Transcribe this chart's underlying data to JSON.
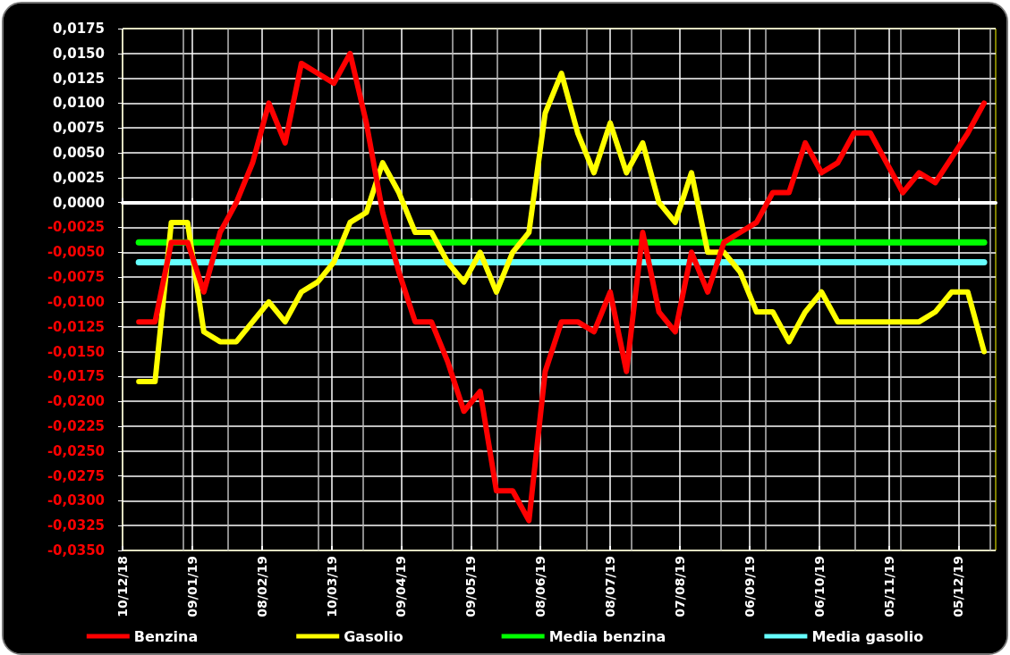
{
  "chart_data": {
    "type": "line",
    "x": [
      "2018-12-17",
      "2018-12-24",
      "2018-12-31",
      "2019-01-07",
      "2019-01-14",
      "2019-01-21",
      "2019-01-28",
      "2019-02-04",
      "2019-02-11",
      "2019-02-18",
      "2019-02-25",
      "2019-03-04",
      "2019-03-11",
      "2019-03-18",
      "2019-03-25",
      "2019-04-01",
      "2019-04-08",
      "2019-04-15",
      "2019-04-22",
      "2019-04-29",
      "2019-05-06",
      "2019-05-13",
      "2019-05-20",
      "2019-05-27",
      "2019-06-03",
      "2019-06-10",
      "2019-06-17",
      "2019-06-24",
      "2019-07-01",
      "2019-07-08",
      "2019-07-15",
      "2019-07-22",
      "2019-07-29",
      "2019-08-05",
      "2019-08-12",
      "2019-08-19",
      "2019-08-26",
      "2019-09-02",
      "2019-09-09",
      "2019-09-16",
      "2019-09-23",
      "2019-09-30",
      "2019-10-07",
      "2019-10-14",
      "2019-10-21",
      "2019-10-28",
      "2019-11-04",
      "2019-11-11",
      "2019-11-18",
      "2019-11-25",
      "2019-12-02",
      "2019-12-09",
      "2019-12-16"
    ],
    "series": [
      {
        "name": "Benzina",
        "color": "#ff0000",
        "values": [
          -0.012,
          -0.012,
          -0.004,
          -0.004,
          -0.009,
          -0.003,
          0.0,
          0.004,
          0.01,
          0.006,
          0.014,
          0.013,
          0.012,
          0.015,
          0.008,
          -0.001,
          -0.007,
          -0.012,
          -0.012,
          -0.016,
          -0.021,
          -0.019,
          -0.029,
          -0.029,
          -0.032,
          -0.017,
          -0.012,
          -0.012,
          -0.013,
          -0.009,
          -0.017,
          -0.003,
          -0.011,
          -0.013,
          -0.005,
          -0.009,
          -0.004,
          -0.003,
          -0.002,
          0.001,
          0.001,
          0.006,
          0.003,
          0.004,
          0.007,
          0.007,
          0.004,
          0.001,
          0.003,
          0.002,
          0.0045,
          0.007,
          0.01
        ]
      },
      {
        "name": "Gasolio",
        "color": "#ffff00",
        "values": [
          -0.018,
          -0.018,
          -0.002,
          -0.002,
          -0.013,
          -0.014,
          -0.014,
          -0.012,
          -0.01,
          -0.012,
          -0.009,
          -0.008,
          -0.006,
          -0.002,
          -0.001,
          0.004,
          0.001,
          -0.003,
          -0.003,
          -0.006,
          -0.008,
          -0.005,
          -0.009,
          -0.005,
          -0.003,
          0.009,
          0.013,
          0.007,
          0.003,
          0.008,
          0.003,
          0.006,
          0.0,
          -0.002,
          0.003,
          -0.005,
          -0.005,
          -0.007,
          -0.011,
          -0.011,
          -0.014,
          -0.011,
          -0.009,
          -0.012,
          -0.012,
          -0.012,
          -0.012,
          -0.012,
          -0.012,
          -0.011,
          -0.009,
          -0.009,
          -0.015
        ]
      },
      {
        "name": "Media benzina",
        "color": "#00ff00",
        "values": [
          -0.004,
          -0.004,
          -0.004,
          -0.004,
          -0.004,
          -0.004,
          -0.004,
          -0.004,
          -0.004,
          -0.004,
          -0.004,
          -0.004,
          -0.004,
          -0.004,
          -0.004,
          -0.004,
          -0.004,
          -0.004,
          -0.004,
          -0.004,
          -0.004,
          -0.004,
          -0.004,
          -0.004,
          -0.004,
          -0.004,
          -0.004,
          -0.004,
          -0.004,
          -0.004,
          -0.004,
          -0.004,
          -0.004,
          -0.004,
          -0.004,
          -0.004,
          -0.004,
          -0.004,
          -0.004,
          -0.004,
          -0.004,
          -0.004,
          -0.004,
          -0.004,
          -0.004,
          -0.004,
          -0.004,
          -0.004,
          -0.004,
          -0.004,
          -0.004,
          -0.004,
          -0.004
        ]
      },
      {
        "name": "Media gasolio",
        "color": "#66ffff",
        "values": [
          -0.006,
          -0.006,
          -0.006,
          -0.006,
          -0.006,
          -0.006,
          -0.006,
          -0.006,
          -0.006,
          -0.006,
          -0.006,
          -0.006,
          -0.006,
          -0.006,
          -0.006,
          -0.006,
          -0.006,
          -0.006,
          -0.006,
          -0.006,
          -0.006,
          -0.006,
          -0.006,
          -0.006,
          -0.006,
          -0.006,
          -0.006,
          -0.006,
          -0.006,
          -0.006,
          -0.006,
          -0.006,
          -0.006,
          -0.006,
          -0.006,
          -0.006,
          -0.006,
          -0.006,
          -0.006,
          -0.006,
          -0.006,
          -0.006,
          -0.006,
          -0.006,
          -0.006,
          -0.006,
          -0.006,
          -0.006,
          -0.006,
          -0.006,
          -0.006,
          -0.006,
          -0.006
        ]
      }
    ],
    "xlim": [
      "2018-12-10",
      "2019-12-21"
    ],
    "xticks": [
      {
        "value": "2018-12-10",
        "label": "10/12/18"
      },
      {
        "value": "2019-01-09",
        "label": "09/01/19"
      },
      {
        "value": "2019-02-08",
        "label": "08/02/19"
      },
      {
        "value": "2019-03-10",
        "label": "10/03/19"
      },
      {
        "value": "2019-04-09",
        "label": "09/04/19"
      },
      {
        "value": "2019-05-09",
        "label": "09/05/19"
      },
      {
        "value": "2019-06-08",
        "label": "08/06/19"
      },
      {
        "value": "2019-07-08",
        "label": "08/07/19"
      },
      {
        "value": "2019-08-07",
        "label": "07/08/19"
      },
      {
        "value": "2019-09-06",
        "label": "06/09/19"
      },
      {
        "value": "2019-10-06",
        "label": "06/10/19"
      },
      {
        "value": "2019-11-05",
        "label": "05/11/19"
      },
      {
        "value": "2019-12-05",
        "label": "05/12/19"
      }
    ],
    "ylim": [
      -0.035,
      0.0175
    ],
    "yticks": [
      {
        "value": -0.035,
        "label": "-0,0350"
      },
      {
        "value": -0.0325,
        "label": "-0,0325"
      },
      {
        "value": -0.03,
        "label": "-0,0300"
      },
      {
        "value": -0.0275,
        "label": "-0,0275"
      },
      {
        "value": -0.025,
        "label": "-0,0250"
      },
      {
        "value": -0.0225,
        "label": "-0,0225"
      },
      {
        "value": -0.02,
        "label": "-0,0200"
      },
      {
        "value": -0.0175,
        "label": "-0,0175"
      },
      {
        "value": -0.015,
        "label": "-0,0150"
      },
      {
        "value": -0.0125,
        "label": "-0,0125"
      },
      {
        "value": -0.01,
        "label": "-0,0100"
      },
      {
        "value": -0.0075,
        "label": "-0,0075"
      },
      {
        "value": -0.005,
        "label": "-0,0050"
      },
      {
        "value": -0.0025,
        "label": "-0,0025"
      },
      {
        "value": 0,
        "label": "0,0000"
      },
      {
        "value": 0.0025,
        "label": "0,0025"
      },
      {
        "value": 0.005,
        "label": "0,0050"
      },
      {
        "value": 0.0075,
        "label": "0,0075"
      },
      {
        "value": 0.01,
        "label": "0,0100"
      },
      {
        "value": 0.0125,
        "label": "0,0125"
      },
      {
        "value": 0.015,
        "label": "0,0150"
      },
      {
        "value": 0.0175,
        "label": "0,0175"
      }
    ],
    "grid": true,
    "legend": "bottom",
    "marker": "none",
    "line_style": "solid"
  }
}
